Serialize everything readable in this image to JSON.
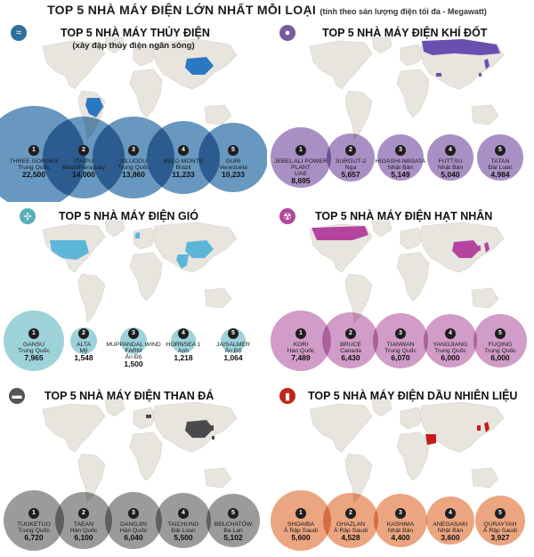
{
  "title": {
    "main": "TOP 5 NHÀ MÁY ĐIỆN LỚN NHẤT MỖI LOẠI",
    "sub": "(tính theo sản lượng điện tối đa - Megawatt)"
  },
  "panels": [
    {
      "key": "hydro",
      "title": "TOP 5 NHÀ MÁY THỦY ĐIỆN",
      "note": "(xây đập thủy điện ngăn sông)",
      "icon": "water-wave-icon",
      "glyph": "≈",
      "color": "#2e6f9e",
      "circle_color": "#4d86b4",
      "highlight_color": "#2b78c2",
      "highlight_regions": [
        "china",
        "brazil"
      ],
      "plants": [
        {
          "rank": "1",
          "name": "THREE GORGES",
          "country": "Trung Quốc",
          "value": "22,500",
          "mw": 22500
        },
        {
          "rank": "2",
          "name": "ITAIPU",
          "country": "Brazil/Paraguay",
          "value": "14,000",
          "mw": 14000
        },
        {
          "rank": "3",
          "name": "XILUODU",
          "country": "Trung Quốc",
          "value": "13,860",
          "mw": 13860
        },
        {
          "rank": "4",
          "name": "BELO MONTE",
          "country": "Brazil",
          "value": "11,233",
          "mw": 11233
        },
        {
          "rank": "5",
          "name": "GURI",
          "country": "Venezuela",
          "value": "10,233",
          "mw": 10233
        }
      ]
    },
    {
      "key": "gas",
      "title": "TOP 5 NHÀ MÁY ĐIỆN KHÍ ĐỐT",
      "note": "",
      "icon": "gas-flame-icon",
      "glyph": "●",
      "color": "#7a5a9a",
      "circle_color": "#9a7dba",
      "highlight_color": "#6a4fb0",
      "highlight_regions": [
        "russia",
        "uae",
        "japan",
        "taiwan"
      ],
      "plants": [
        {
          "rank": "1",
          "name": "JEBEL ALI POWER PLANT",
          "country": "UAE",
          "value": "8,695",
          "mw": 8695
        },
        {
          "rank": "2",
          "name": "SURGUT-2",
          "country": "Nga",
          "value": "5,657",
          "mw": 5657
        },
        {
          "rank": "3",
          "name": "HIGASHI-NIIGATA",
          "country": "Nhật Bản",
          "value": "5,149",
          "mw": 5149
        },
        {
          "rank": "4",
          "name": "FUTTSU",
          "country": "Nhật Bản",
          "value": "5,040",
          "mw": 5040
        },
        {
          "rank": "5",
          "name": "TATAN",
          "country": "Đài Loan",
          "value": "4,984",
          "mw": 4984
        }
      ]
    },
    {
      "key": "wind",
      "title": "TOP 5 NHÀ MÁY ĐIỆN GIÓ",
      "note": "",
      "icon": "wind-turbine-icon",
      "glyph": "✢",
      "color": "#5aaeb8",
      "circle_color": "#8ccad2",
      "highlight_color": "#5cb6d8",
      "highlight_regions": [
        "usa",
        "uk",
        "india",
        "china"
      ],
      "plants": [
        {
          "rank": "1",
          "name": "GANSU",
          "country": "Trung Quốc",
          "value": "7,965",
          "mw": 7965
        },
        {
          "rank": "2",
          "name": "ALTA",
          "country": "Mỹ",
          "value": "1,548",
          "mw": 1548
        },
        {
          "rank": "3",
          "name": "MUPPANDAL WIND FARM",
          "country": "Ấn Độ",
          "value": "1,500",
          "mw": 1500
        },
        {
          "rank": "4",
          "name": "HORNSEA 1",
          "country": "Anh",
          "value": "1,218",
          "mw": 1218
        },
        {
          "rank": "5",
          "name": "JAISALMER",
          "country": "Ấn Độ",
          "value": "1,064",
          "mw": 1064
        }
      ]
    },
    {
      "key": "nuclear",
      "title": "TOP 5 NHÀ MÁY ĐIỆN HẠT NHÂN",
      "note": "",
      "icon": "radiation-icon",
      "glyph": "☢",
      "color": "#b0489c",
      "circle_color": "#c98bbd",
      "highlight_color": "#b5449f",
      "highlight_regions": [
        "canada",
        "korea",
        "japan",
        "china"
      ],
      "plants": [
        {
          "rank": "1",
          "name": "KORI",
          "country": "Hàn Quốc",
          "value": "7,489",
          "mw": 7489
        },
        {
          "rank": "2",
          "name": "BRUCE",
          "country": "Canada",
          "value": "6,430",
          "mw": 6430
        },
        {
          "rank": "3",
          "name": "TIANWAN",
          "country": "Trung Quốc",
          "value": "6,070",
          "mw": 6070
        },
        {
          "rank": "4",
          "name": "YANGJIANG",
          "country": "Trung Quốc",
          "value": "6,000",
          "mw": 6000
        },
        {
          "rank": "5",
          "name": "FUQING",
          "country": "Trung Quốc",
          "value": "6,000",
          "mw": 6000
        }
      ]
    },
    {
      "key": "coal",
      "title": "TOP 5 NHÀ MÁY ĐIỆN THAN ĐÁ",
      "note": "",
      "icon": "coal-cart-icon",
      "glyph": "▬",
      "color": "#555555",
      "circle_color": "#8a8a8a",
      "highlight_color": "#4a4a4a",
      "highlight_regions": [
        "china",
        "korea",
        "taiwan",
        "poland"
      ],
      "plants": [
        {
          "rank": "1",
          "name": "TUOKETUO",
          "country": "Trung Quốc",
          "value": "6,720",
          "mw": 6720
        },
        {
          "rank": "2",
          "name": "TAEAN",
          "country": "Hàn Quốc",
          "value": "6,100",
          "mw": 6100
        },
        {
          "rank": "3",
          "name": "DANGJIN",
          "country": "Hàn Quốc",
          "value": "6,040",
          "mw": 6040
        },
        {
          "rank": "4",
          "name": "TAICHUNG",
          "country": "Đài Loan",
          "value": "5,500",
          "mw": 5500
        },
        {
          "rank": "5",
          "name": "BEŁCHATÓW",
          "country": "Ba Lan",
          "value": "5,102",
          "mw": 5102
        }
      ]
    },
    {
      "key": "oil",
      "title": "TOP 5 NHÀ MÁY ĐIỆN DẦU NHIÊN LIỆU",
      "note": "",
      "icon": "oil-barrel-icon",
      "glyph": "▮",
      "color": "#c0261c",
      "circle_color": "#e8956a",
      "highlight_color": "#c41c1c",
      "highlight_regions": [
        "saudi",
        "korea",
        "japan"
      ],
      "plants": [
        {
          "rank": "1",
          "name": "SHOAIBA",
          "country": "Ả Rập Saudi",
          "value": "5,600",
          "mw": 5600
        },
        {
          "rank": "2",
          "name": "GHAZLAN",
          "country": "Ả Rập Saudi",
          "value": "4,528",
          "mw": 4528
        },
        {
          "rank": "3",
          "name": "KASHIMA",
          "country": "Nhật Bản",
          "value": "4,400",
          "mw": 4400
        },
        {
          "rank": "4",
          "name": "ANEGASAKI",
          "country": "Nhật Bản",
          "value": "3,600",
          "mw": 3600
        },
        {
          "rank": "5",
          "name": "QURAYYAH",
          "country": "Ả Rập Saudi",
          "value": "3,927",
          "mw": 3927
        }
      ]
    }
  ]
}
